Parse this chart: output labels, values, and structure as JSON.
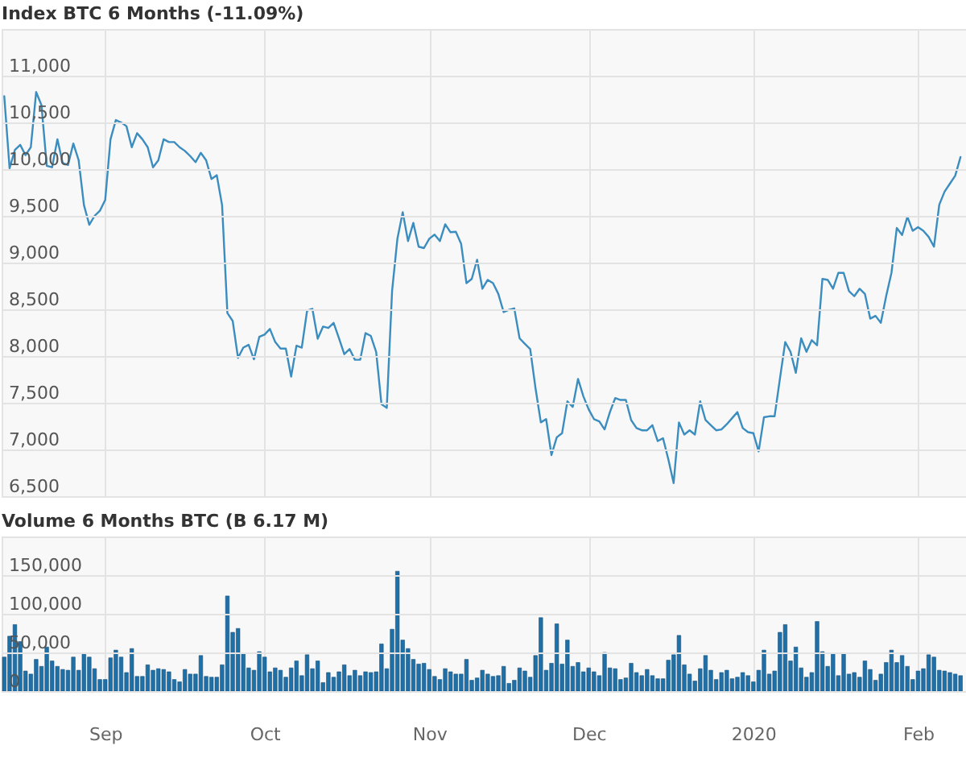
{
  "chart_data": [
    {
      "type": "line",
      "title": "Index BTC 6 Months (-11.09%)",
      "tick_labels": "y",
      "grid": true,
      "xlim": [
        "2019-08-12T12:00",
        "2020-02-10T08:00"
      ],
      "xticks": [
        {
          "value": "2019-09-01",
          "label": null
        },
        {
          "value": "2019-10-01",
          "label": null
        },
        {
          "value": "2019-11-01",
          "label": null
        },
        {
          "value": "2019-12-01",
          "label": null
        },
        {
          "value": "2020-01-01",
          "label": null
        },
        {
          "value": "2020-02-01",
          "label": null
        }
      ],
      "ylim": [
        6500,
        11500
      ],
      "yticks": [
        {
          "value": 6500,
          "label": "6,500"
        },
        {
          "value": 7000,
          "label": "7,000"
        },
        {
          "value": 7500,
          "label": "7,500"
        },
        {
          "value": 8000,
          "label": "8,000"
        },
        {
          "value": 8500,
          "label": "8,500"
        },
        {
          "value": 9000,
          "label": "9,000"
        },
        {
          "value": 9500,
          "label": "9,500"
        },
        {
          "value": 10000,
          "label": "10,000"
        },
        {
          "value": 10500,
          "label": "10,500"
        },
        {
          "value": 11000,
          "label": "11,000"
        }
      ],
      "x": [
        "2019-08-13",
        "2019-08-14",
        "2019-08-15",
        "2019-08-16",
        "2019-08-17",
        "2019-08-18",
        "2019-08-19",
        "2019-08-20",
        "2019-08-21",
        "2019-08-22",
        "2019-08-23",
        "2019-08-24",
        "2019-08-25",
        "2019-08-26",
        "2019-08-27",
        "2019-08-28",
        "2019-08-29",
        "2019-08-30",
        "2019-08-31",
        "2019-09-01",
        "2019-09-02",
        "2019-09-03",
        "2019-09-04",
        "2019-09-05",
        "2019-09-06",
        "2019-09-07",
        "2019-09-08",
        "2019-09-09",
        "2019-09-10",
        "2019-09-11",
        "2019-09-12",
        "2019-09-13",
        "2019-09-14",
        "2019-09-15",
        "2019-09-16",
        "2019-09-17",
        "2019-09-18",
        "2019-09-19",
        "2019-09-20",
        "2019-09-21",
        "2019-09-22",
        "2019-09-23",
        "2019-09-24",
        "2019-09-25",
        "2019-09-26",
        "2019-09-27",
        "2019-09-28",
        "2019-09-29",
        "2019-09-30",
        "2019-10-01",
        "2019-10-02",
        "2019-10-03",
        "2019-10-04",
        "2019-10-05",
        "2019-10-06",
        "2019-10-07",
        "2019-10-08",
        "2019-10-09",
        "2019-10-10",
        "2019-10-11",
        "2019-10-12",
        "2019-10-13",
        "2019-10-14",
        "2019-10-15",
        "2019-10-16",
        "2019-10-17",
        "2019-10-18",
        "2019-10-19",
        "2019-10-20",
        "2019-10-21",
        "2019-10-22",
        "2019-10-23",
        "2019-10-24",
        "2019-10-25",
        "2019-10-26",
        "2019-10-27",
        "2019-10-28",
        "2019-10-29",
        "2019-10-30",
        "2019-10-31",
        "2019-11-01",
        "2019-11-02",
        "2019-11-03",
        "2019-11-04",
        "2019-11-05",
        "2019-11-06",
        "2019-11-07",
        "2019-11-08",
        "2019-11-09",
        "2019-11-10",
        "2019-11-11",
        "2019-11-12",
        "2019-11-13",
        "2019-11-14",
        "2019-11-15",
        "2019-11-16",
        "2019-11-17",
        "2019-11-18",
        "2019-11-19",
        "2019-11-20",
        "2019-11-21",
        "2019-11-22",
        "2019-11-23",
        "2019-11-24",
        "2019-11-25",
        "2019-11-26",
        "2019-11-27",
        "2019-11-28",
        "2019-11-29",
        "2019-11-30",
        "2019-12-01",
        "2019-12-02",
        "2019-12-03",
        "2019-12-04",
        "2019-12-05",
        "2019-12-06",
        "2019-12-07",
        "2019-12-08",
        "2019-12-09",
        "2019-12-10",
        "2019-12-11",
        "2019-12-12",
        "2019-12-13",
        "2019-12-14",
        "2019-12-15",
        "2019-12-16",
        "2019-12-17",
        "2019-12-18",
        "2019-12-19",
        "2019-12-20",
        "2019-12-21",
        "2019-12-22",
        "2019-12-23",
        "2019-12-24",
        "2019-12-25",
        "2019-12-26",
        "2019-12-27",
        "2019-12-28",
        "2019-12-29",
        "2019-12-30",
        "2019-12-31",
        "2020-01-01",
        "2020-01-02",
        "2020-01-03",
        "2020-01-04",
        "2020-01-05",
        "2020-01-06",
        "2020-01-07",
        "2020-01-08",
        "2020-01-09",
        "2020-01-10",
        "2020-01-11",
        "2020-01-12",
        "2020-01-13",
        "2020-01-14",
        "2020-01-15",
        "2020-01-16",
        "2020-01-17",
        "2020-01-18",
        "2020-01-19",
        "2020-01-20",
        "2020-01-21",
        "2020-01-22",
        "2020-01-23",
        "2020-01-24",
        "2020-01-25",
        "2020-01-26",
        "2020-01-27",
        "2020-01-28",
        "2020-01-29",
        "2020-01-30",
        "2020-01-31",
        "2020-02-01",
        "2020-02-02",
        "2020-02-03",
        "2020-02-04",
        "2020-02-05",
        "2020-02-06",
        "2020-02-07",
        "2020-02-08",
        "2020-02-09"
      ],
      "series": [
        {
          "color": "#3c8dbf",
          "values": [
            10780,
            10010,
            10205,
            10260,
            10150,
            10235,
            10825,
            10685,
            10035,
            10020,
            10320,
            10065,
            10045,
            10275,
            10095,
            9615,
            9405,
            9500,
            9555,
            9670,
            10320,
            10525,
            10500,
            10460,
            10235,
            10385,
            10320,
            10235,
            10020,
            10095,
            10320,
            10290,
            10290,
            10235,
            10195,
            10140,
            10075,
            10175,
            10095,
            9895,
            9935,
            9615,
            8460,
            8375,
            7980,
            8090,
            8120,
            7965,
            8205,
            8230,
            8290,
            8150,
            8080,
            8080,
            7780,
            8110,
            8090,
            8485,
            8505,
            8185,
            8315,
            8300,
            8355,
            8190,
            8020,
            8075,
            7960,
            7960,
            8245,
            8215,
            8045,
            7485,
            7445,
            8695,
            9255,
            9540,
            9230,
            9425,
            9170,
            9155,
            9255,
            9300,
            9230,
            9410,
            9325,
            9330,
            9200,
            8780,
            8825,
            9030,
            8720,
            8815,
            8780,
            8665,
            8470,
            8495,
            8510,
            8190,
            8130,
            8075,
            7655,
            7290,
            7325,
            6940,
            7130,
            7175,
            7515,
            7455,
            7755,
            7570,
            7430,
            7325,
            7300,
            7215,
            7400,
            7550,
            7530,
            7530,
            7315,
            7230,
            7205,
            7205,
            7260,
            7090,
            7120,
            6895,
            6640,
            7290,
            7160,
            7205,
            7160,
            7515,
            7315,
            7260,
            7205,
            7215,
            7270,
            7335,
            7400,
            7230,
            7185,
            7175,
            6980,
            7345,
            7355,
            7355,
            7755,
            8150,
            8045,
            7820,
            8190,
            8045,
            8170,
            8115,
            8825,
            8815,
            8720,
            8890,
            8890,
            8695,
            8640,
            8720,
            8665,
            8400,
            8430,
            8355,
            8640,
            8890,
            9370,
            9295,
            9490,
            9340,
            9380,
            9340,
            9275,
            9170,
            9620,
            9760,
            9845,
            9930,
            10130
          ]
        }
      ]
    },
    {
      "type": "bar",
      "title": "Volume 6 Months BTC (B 6.17 M)",
      "grid": true,
      "xlim": [
        "2019-08-12T12:00",
        "2020-02-10T08:00"
      ],
      "xticks": [
        {
          "value": "2019-09-01",
          "label": "Sep"
        },
        {
          "value": "2019-10-01",
          "label": "Oct"
        },
        {
          "value": "2019-11-01",
          "label": "Nov"
        },
        {
          "value": "2019-12-01",
          "label": "Dec"
        },
        {
          "value": "2020-01-01",
          "label": "2020"
        },
        {
          "value": "2020-02-01",
          "label": "Feb"
        }
      ],
      "ylim": [
        0,
        200000
      ],
      "yticks": [
        0,
        {
          "value": 50000,
          "label": "50,000"
        },
        {
          "value": 100000,
          "label": "100,000"
        },
        {
          "value": 150000,
          "label": "150,000"
        }
      ],
      "x": [
        "2019-08-13",
        "2019-08-14",
        "2019-08-15",
        "2019-08-16",
        "2019-08-17",
        "2019-08-18",
        "2019-08-19",
        "2019-08-20",
        "2019-08-21",
        "2019-08-22",
        "2019-08-23",
        "2019-08-24",
        "2019-08-25",
        "2019-08-26",
        "2019-08-27",
        "2019-08-28",
        "2019-08-29",
        "2019-08-30",
        "2019-08-31",
        "2019-09-01",
        "2019-09-02",
        "2019-09-03",
        "2019-09-04",
        "2019-09-05",
        "2019-09-06",
        "2019-09-07",
        "2019-09-08",
        "2019-09-09",
        "2019-09-10",
        "2019-09-11",
        "2019-09-12",
        "2019-09-13",
        "2019-09-14",
        "2019-09-15",
        "2019-09-16",
        "2019-09-17",
        "2019-09-18",
        "2019-09-19",
        "2019-09-20",
        "2019-09-21",
        "2019-09-22",
        "2019-09-23",
        "2019-09-24",
        "2019-09-25",
        "2019-09-26",
        "2019-09-27",
        "2019-09-28",
        "2019-09-29",
        "2019-09-30",
        "2019-10-01",
        "2019-10-02",
        "2019-10-03",
        "2019-10-04",
        "2019-10-05",
        "2019-10-06",
        "2019-10-07",
        "2019-10-08",
        "2019-10-09",
        "2019-10-10",
        "2019-10-11",
        "2019-10-12",
        "2019-10-13",
        "2019-10-14",
        "2019-10-15",
        "2019-10-16",
        "2019-10-17",
        "2019-10-18",
        "2019-10-19",
        "2019-10-20",
        "2019-10-21",
        "2019-10-22",
        "2019-10-23",
        "2019-10-24",
        "2019-10-25",
        "2019-10-26",
        "2019-10-27",
        "2019-10-28",
        "2019-10-29",
        "2019-10-30",
        "2019-10-31",
        "2019-11-01",
        "2019-11-02",
        "2019-11-03",
        "2019-11-04",
        "2019-11-05",
        "2019-11-06",
        "2019-11-07",
        "2019-11-08",
        "2019-11-09",
        "2019-11-10",
        "2019-11-11",
        "2019-11-12",
        "2019-11-13",
        "2019-11-14",
        "2019-11-15",
        "2019-11-16",
        "2019-11-17",
        "2019-11-18",
        "2019-11-19",
        "2019-11-20",
        "2019-11-21",
        "2019-11-22",
        "2019-11-23",
        "2019-11-24",
        "2019-11-25",
        "2019-11-26",
        "2019-11-27",
        "2019-11-28",
        "2019-11-29",
        "2019-11-30",
        "2019-12-01",
        "2019-12-02",
        "2019-12-03",
        "2019-12-04",
        "2019-12-05",
        "2019-12-06",
        "2019-12-07",
        "2019-12-08",
        "2019-12-09",
        "2019-12-10",
        "2019-12-11",
        "2019-12-12",
        "2019-12-13",
        "2019-12-14",
        "2019-12-15",
        "2019-12-16",
        "2019-12-17",
        "2019-12-18",
        "2019-12-19",
        "2019-12-20",
        "2019-12-21",
        "2019-12-22",
        "2019-12-23",
        "2019-12-24",
        "2019-12-25",
        "2019-12-26",
        "2019-12-27",
        "2019-12-28",
        "2019-12-29",
        "2019-12-30",
        "2019-12-31",
        "2020-01-01",
        "2020-01-02",
        "2020-01-03",
        "2020-01-04",
        "2020-01-05",
        "2020-01-06",
        "2020-01-07",
        "2020-01-08",
        "2020-01-09",
        "2020-01-10",
        "2020-01-11",
        "2020-01-12",
        "2020-01-13",
        "2020-01-14",
        "2020-01-15",
        "2020-01-16",
        "2020-01-17",
        "2020-01-18",
        "2020-01-19",
        "2020-01-20",
        "2020-01-21",
        "2020-01-22",
        "2020-01-23",
        "2020-01-24",
        "2020-01-25",
        "2020-01-26",
        "2020-01-27",
        "2020-01-28",
        "2020-01-29",
        "2020-01-30",
        "2020-01-31",
        "2020-02-01",
        "2020-02-02",
        "2020-02-03",
        "2020-02-04",
        "2020-02-05",
        "2020-02-06",
        "2020-02-07",
        "2020-02-08",
        "2020-02-09"
      ],
      "series": [
        {
          "color": "#2070a8",
          "values": [
            44000,
            71000,
            86000,
            64000,
            26000,
            22000,
            41000,
            32000,
            57000,
            39000,
            32000,
            28000,
            27000,
            44000,
            27000,
            49000,
            44000,
            29000,
            15000,
            15000,
            43000,
            53000,
            44000,
            24000,
            55000,
            19000,
            19000,
            34000,
            27000,
            29000,
            28000,
            25000,
            15000,
            12000,
            28000,
            22000,
            22000,
            46000,
            19000,
            18000,
            18000,
            34000,
            123000,
            76000,
            81000,
            49000,
            30000,
            27000,
            51000,
            44000,
            25000,
            30000,
            27000,
            18000,
            30000,
            39000,
            20000,
            47000,
            29000,
            39000,
            11000,
            24000,
            18000,
            25000,
            34000,
            20000,
            27000,
            20000,
            25000,
            24000,
            25000,
            61000,
            29000,
            80000,
            155000,
            66000,
            55000,
            41000,
            35000,
            36000,
            28000,
            19000,
            15000,
            29000,
            25000,
            22000,
            22000,
            41000,
            14000,
            17000,
            27000,
            22000,
            19000,
            20000,
            32000,
            10000,
            14000,
            30000,
            26000,
            18000,
            46000,
            95000,
            27000,
            36000,
            87000,
            35000,
            66000,
            32000,
            37000,
            25000,
            30000,
            25000,
            20000,
            50000,
            30000,
            29000,
            15000,
            17000,
            36000,
            24000,
            20000,
            28000,
            20000,
            16000,
            16000,
            40000,
            47000,
            72000,
            34000,
            22000,
            13000,
            29000,
            46000,
            27000,
            15000,
            24000,
            27000,
            16000,
            18000,
            24000,
            20000,
            12000,
            27000,
            53000,
            22000,
            26000,
            76000,
            86000,
            39000,
            57000,
            30000,
            18000,
            24000,
            90000,
            51000,
            32000,
            49000,
            20000,
            49000,
            22000,
            24000,
            18000,
            39000,
            28000,
            14000,
            22000,
            37000,
            53000,
            37000,
            46000,
            32000,
            15000,
            26000,
            29000,
            47000,
            44000,
            27000,
            26000,
            24000,
            22000,
            20000
          ]
        }
      ]
    }
  ]
}
